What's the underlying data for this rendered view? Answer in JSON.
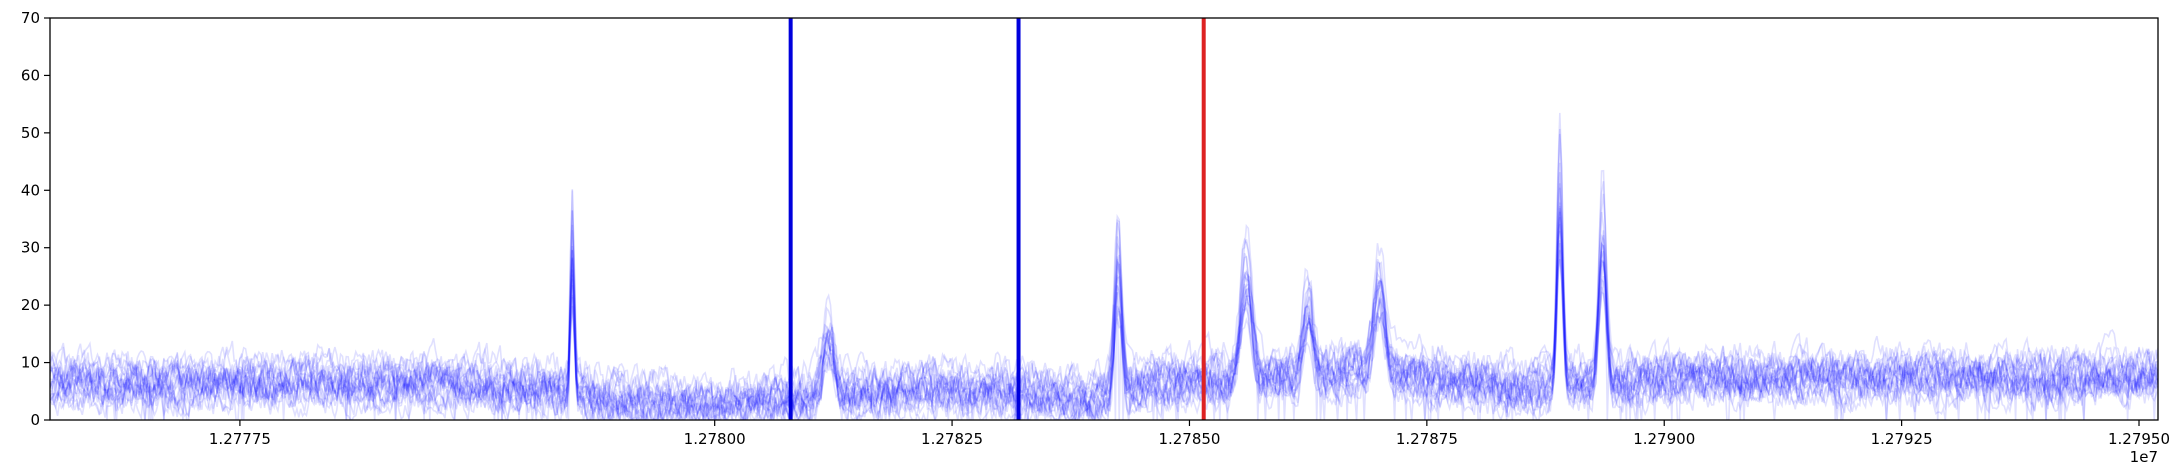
{
  "chart_data": {
    "type": "line",
    "title": "",
    "xlabel": "",
    "ylabel": "",
    "x_offset_label": "1e7",
    "xlim": [
      12777300,
      12779520
    ],
    "ylim": [
      0,
      70
    ],
    "x_ticks": [
      12777500,
      12778000,
      12778250,
      12778500,
      12778750,
      12779000,
      12779250,
      12779500
    ],
    "x_tick_labels": [
      "1.27775",
      "1.27800",
      "1.27825",
      "1.27850",
      "1.27875",
      "1.27900",
      "1.27925",
      "1.27950"
    ],
    "y_ticks": [
      0,
      10,
      20,
      30,
      40,
      50,
      60,
      70
    ],
    "y_tick_labels": [
      "0",
      "10",
      "20",
      "30",
      "40",
      "50",
      "60",
      "70"
    ],
    "grid": false,
    "legend": "none",
    "series_color": "#0000ff",
    "series_alpha": 0.12,
    "series_count": 20,
    "x_step": 2,
    "baseline_profile": [
      {
        "x": 12777300,
        "y": 7
      },
      {
        "x": 12777700,
        "y": 7
      },
      {
        "x": 12777840,
        "y": 6
      },
      {
        "x": 12777880,
        "y": 4
      },
      {
        "x": 12778000,
        "y": 3
      },
      {
        "x": 12778120,
        "y": 5
      },
      {
        "x": 12778300,
        "y": 6
      },
      {
        "x": 12778400,
        "y": 4
      },
      {
        "x": 12778450,
        "y": 7
      },
      {
        "x": 12778600,
        "y": 8
      },
      {
        "x": 12778700,
        "y": 9
      },
      {
        "x": 12778850,
        "y": 6
      },
      {
        "x": 12779000,
        "y": 8
      },
      {
        "x": 12779520,
        "y": 8
      }
    ],
    "peaks": [
      {
        "x": 12777850,
        "height": 25,
        "width": 2
      },
      {
        "x": 12778120,
        "height": 10,
        "width": 6
      },
      {
        "x": 12778425,
        "height": 22,
        "width": 4
      },
      {
        "x": 12778560,
        "height": 18,
        "width": 6
      },
      {
        "x": 12778625,
        "height": 12,
        "width": 5
      },
      {
        "x": 12778700,
        "height": 14,
        "width": 6
      },
      {
        "x": 12778890,
        "height": 33,
        "width": 3
      },
      {
        "x": 12778935,
        "height": 25,
        "width": 4
      }
    ],
    "vertical_lines": [
      {
        "x": 12778080,
        "color": "#0000dd"
      },
      {
        "x": 12778320,
        "color": "#0000dd"
      },
      {
        "x": 12778515,
        "color": "#dd2222"
      }
    ]
  }
}
